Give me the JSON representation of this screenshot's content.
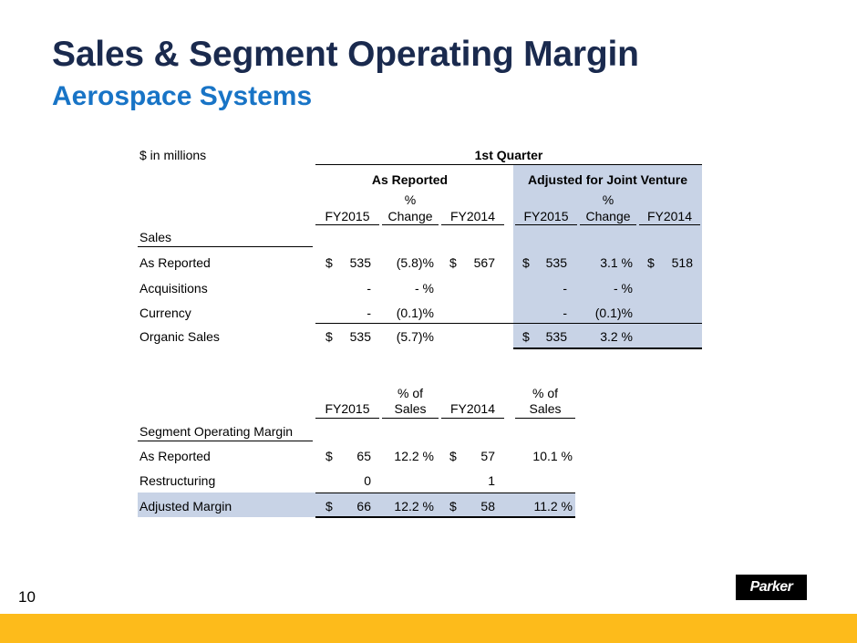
{
  "header": {
    "title": "Sales & Segment Operating Margin",
    "subtitle": "Aerospace Systems"
  },
  "sales_table": {
    "units_label": "$ in millions",
    "period": "1st Quarter",
    "group_left": "As Reported",
    "group_right": "Adjusted for Joint Venture",
    "col_fy2015": "FY2015",
    "col_change_1": "%",
    "col_change_2": "Change",
    "col_fy2014": "FY2014",
    "section_label": "Sales",
    "rows": [
      {
        "label": "As Reported",
        "l_cur": "$",
        "l_fy15": "535",
        "l_chg": "(5.8)%",
        "l_cur14": "$",
        "l_fy14": "567",
        "r_cur": "$",
        "r_fy15": "535",
        "r_chg": "3.1 %",
        "r_cur14": "$",
        "r_fy14": "518"
      },
      {
        "label": "Acquisitions",
        "l_cur": "",
        "l_fy15": "-",
        "l_chg": "- %",
        "l_cur14": "",
        "l_fy14": "",
        "r_cur": "",
        "r_fy15": "-",
        "r_chg": "- %",
        "r_cur14": "",
        "r_fy14": ""
      },
      {
        "label": "Currency",
        "l_cur": "",
        "l_fy15": "-",
        "l_chg": "(0.1)%",
        "l_cur14": "",
        "l_fy14": "",
        "r_cur": "",
        "r_fy15": "-",
        "r_chg": "(0.1)%",
        "r_cur14": "",
        "r_fy14": ""
      },
      {
        "label": "Organic Sales",
        "l_cur": "$",
        "l_fy15": "535",
        "l_chg": "(5.7)%",
        "l_cur14": "",
        "l_fy14": "",
        "r_cur": "$",
        "r_fy15": "535",
        "r_chg": "3.2 %",
        "r_cur14": "",
        "r_fy14": ""
      }
    ]
  },
  "margin_table": {
    "col_fy2015": "FY2015",
    "col_pct_1": "% of",
    "col_pct_2": "Sales",
    "col_fy2014": "FY2014",
    "section_label": "Segment Operating Margin",
    "rows": [
      {
        "label": "As Reported",
        "cur15": "$",
        "fy15": "65",
        "pct15": "12.2 %",
        "cur14": "$",
        "fy14": "57",
        "pct14": "10.1 %"
      },
      {
        "label": "Restructuring",
        "cur15": "",
        "fy15": "0",
        "pct15": "",
        "cur14": "",
        "fy14": "1",
        "pct14": ""
      },
      {
        "label": "Adjusted Margin",
        "cur15": "$",
        "fy15": "66",
        "pct15": "12.2 %",
        "cur14": "$",
        "fy14": "58",
        "pct14": "11.2 %"
      }
    ]
  },
  "footer": {
    "page_number": "10",
    "logo_text": "Parker"
  },
  "colors": {
    "title": "#1a2a4e",
    "subtitle": "#1874c6",
    "highlight": "#c8d3e6",
    "footer_bar": "#fdbb1b"
  }
}
